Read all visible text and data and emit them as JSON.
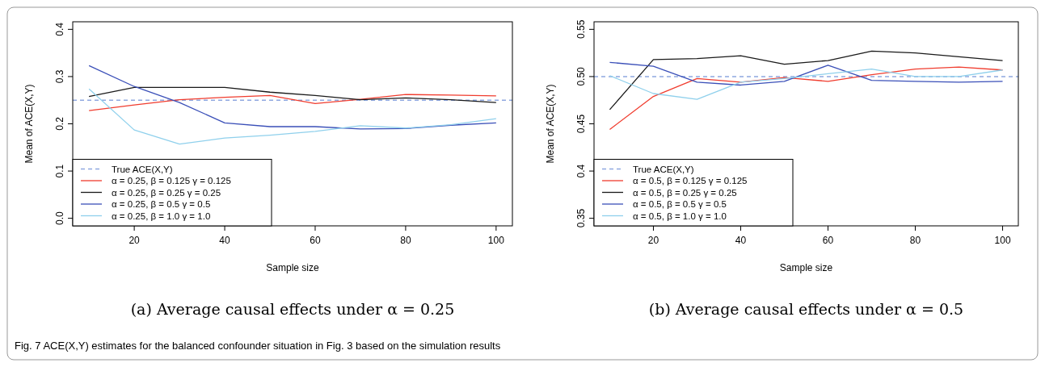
{
  "chart_data": [
    {
      "type": "line",
      "title": "(a) Average causal effects under α = 0.25",
      "xlabel": "Sample size",
      "ylabel": "Mean of ACE(X,Y)",
      "x": [
        10,
        20,
        30,
        40,
        50,
        60,
        70,
        80,
        90,
        100
      ],
      "xlim": [
        6.4,
        103.6
      ],
      "ylim": [
        -0.016,
        0.416
      ],
      "xticks": [
        20,
        40,
        60,
        80,
        100
      ],
      "yticks": [
        {
          "value": 0,
          "label": "0.0"
        },
        0.1,
        0.2,
        0.3,
        0.4
      ],
      "legend": "bottom left",
      "line_style": "solid",
      "marker": "none",
      "ref_lines": [
        {
          "axis": "y",
          "value": 0.25,
          "label": "True ACE(X,Y)",
          "color": "#8fa8e0",
          "line_style": "dashed"
        }
      ],
      "series": [
        {
          "name": "α = 0.25,  β = 0.125 γ = 0.125",
          "color": "#f03c2e",
          "values": [
            0.228,
            0.24,
            0.251,
            0.256,
            0.26,
            0.243,
            0.252,
            0.262,
            0.261,
            0.259
          ]
        },
        {
          "name": "α = 0.25,  β = 0.25 γ = 0.25",
          "color": "#1a1a1a",
          "values": [
            0.258,
            0.277,
            0.277,
            0.277,
            0.267,
            0.26,
            0.251,
            0.255,
            0.251,
            0.245
          ]
        },
        {
          "name": "α = 0.25,  β = 0.5 γ = 0.5",
          "color": "#3a4fb8",
          "values": [
            0.323,
            0.279,
            0.245,
            0.202,
            0.194,
            0.194,
            0.189,
            0.19,
            0.197,
            0.202
          ]
        },
        {
          "name": "α = 0.25,  β = 1.0 γ = 1.0",
          "color": "#8fd0ec",
          "values": [
            0.274,
            0.187,
            0.157,
            0.17,
            0.176,
            0.184,
            0.196,
            0.191,
            0.198,
            0.211
          ]
        }
      ],
      "annotations": [
        "Fig. 7 ACE(X,Y) estimates for the balanced confounder situation in Fig. 3 based on the simulation results"
      ]
    },
    {
      "type": "line",
      "title": "(b) Average causal effects under α = 0.5",
      "xlabel": "Sample size",
      "ylabel": "Mean of ACE(X,Y)",
      "x": [
        10,
        20,
        30,
        40,
        50,
        60,
        70,
        80,
        90,
        100
      ],
      "xlim": [
        6.4,
        103.6
      ],
      "ylim": [
        0.342,
        0.558
      ],
      "xticks": [
        20,
        40,
        60,
        80,
        100
      ],
      "yticks": [
        0.35,
        0.4,
        0.45,
        {
          "value": 0.5,
          "label": "0.50"
        },
        0.55
      ],
      "legend": "bottom left",
      "line_style": "solid",
      "marker": "none",
      "ref_lines": [
        {
          "axis": "y",
          "value": 0.5,
          "label": "True ACE(X,Y)",
          "color": "#8fa8e0",
          "line_style": "dashed"
        }
      ],
      "series": [
        {
          "name": "α = 0.5,  β = 0.125 γ = 0.125",
          "color": "#f03c2e",
          "values": [
            0.444,
            0.479,
            0.498,
            0.494,
            0.499,
            0.495,
            0.502,
            0.508,
            0.51,
            0.507
          ]
        },
        {
          "name": "α = 0.5,  β = 0.25 γ = 0.25",
          "color": "#1a1a1a",
          "values": [
            0.465,
            0.518,
            0.519,
            0.522,
            0.513,
            0.517,
            0.527,
            0.525,
            0.521,
            0.517
          ]
        },
        {
          "name": "α = 0.5,  β = 0.5 γ = 0.5",
          "color": "#3a4fb8",
          "values": [
            0.515,
            0.511,
            0.494,
            0.491,
            0.495,
            0.512,
            0.496,
            0.495,
            0.494,
            0.495
          ]
        },
        {
          "name": "α = 0.5,  β = 1.0 γ = 1.0",
          "color": "#8fd0ec",
          "values": [
            0.501,
            0.482,
            0.476,
            0.494,
            0.498,
            0.503,
            0.508,
            0.5,
            0.5,
            0.507
          ]
        }
      ]
    }
  ]
}
